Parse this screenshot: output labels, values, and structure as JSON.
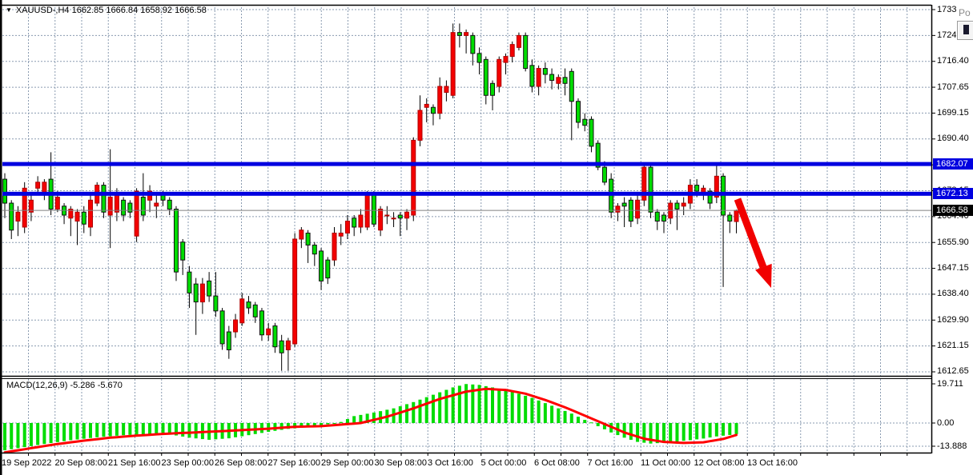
{
  "header": {
    "symbol": "XAUUSD-,H4",
    "ohlc_text": "1662.85 1666.84 1658.92 1666.58",
    "dropdown_icon": "▼"
  },
  "popup": {
    "text": "Po"
  },
  "price_axis": {
    "ticks": [
      "1733.65",
      "1724.90",
      "1716.40",
      "1707.65",
      "1699.15",
      "1690.40",
      "1681.90",
      "1673.15",
      "1664.40",
      "1655.90",
      "1647.15",
      "1638.40",
      "1629.90",
      "1621.15",
      "1612.65"
    ],
    "badges": [
      {
        "label": "1682.07",
        "price": 1682.07,
        "bg": "#0000e0"
      },
      {
        "label": "1672.13",
        "price": 1672.13,
        "bg": "#0000e0"
      },
      {
        "label": "1666.58",
        "price": 1666.58,
        "bg": "#000000"
      }
    ]
  },
  "macd_axis": {
    "labels": [
      "19.711",
      "0.00",
      "-13.888"
    ]
  },
  "time_axis": {
    "labels": [
      "19 Sep 2022",
      "20 Sep 08:00",
      "21 Sep 16:00",
      "23 Sep 00:00",
      "26 Sep 08:00",
      "27 Sep 16:00",
      "29 Sep 00:00",
      "30 Sep 08:00",
      "3 Oct 16:00",
      "5 Oct 00:00",
      "6 Oct 08:00",
      "7 Oct 16:00",
      "11 Oct 00:00",
      "12 Oct 08:00",
      "13 Oct 16:00"
    ]
  },
  "macd_pane": {
    "label": "MACD(12,26,9) -5.286 -5.670",
    "macd_value": -5.286,
    "signal_value": -5.67
  },
  "colors": {
    "bull_candle": "#f40000",
    "bull_border": "#b00000",
    "bear_candle": "#00dc00",
    "bear_border": "#111111",
    "wick": "#000000",
    "level_line": "#0000e0",
    "current_price_line": "#808080",
    "grid": "#8a9bb0",
    "macd_hist": "#00dc00",
    "macd_signal": "#ff0000",
    "arrow": "#f10000",
    "border": "#000000"
  },
  "chart_data": {
    "type": "candlestick",
    "title": "XAUUSD-,H4",
    "symbol": "XAUUSD-",
    "timeframe": "H4",
    "current_bar": {
      "open": 1662.85,
      "high": 1666.84,
      "low": 1658.92,
      "close": 1666.58
    },
    "price_range": [
      1612.65,
      1733.65
    ],
    "levels": [
      1682.07,
      1672.13
    ],
    "current_price": 1666.58,
    "annotation": {
      "type": "arrow-down-right",
      "from_price_x": "after last bar",
      "note_color": "#f10000"
    },
    "candles_ohlc": [
      [
        1677,
        1679,
        1664,
        1669
      ],
      [
        1669,
        1670,
        1657,
        1660
      ],
      [
        1663,
        1668,
        1658,
        1666
      ],
      [
        1661,
        1676,
        1659,
        1674
      ],
      [
        1666,
        1672,
        1663,
        1670
      ],
      [
        1674,
        1678,
        1672,
        1676
      ],
      [
        1672,
        1677,
        1670,
        1676
      ],
      [
        1677,
        1686,
        1665,
        1667
      ],
      [
        1667,
        1673,
        1666,
        1671
      ],
      [
        1668,
        1669,
        1662,
        1665
      ],
      [
        1664,
        1668,
        1658,
        1667
      ],
      [
        1663,
        1667,
        1655,
        1666
      ],
      [
        1666,
        1668,
        1659,
        1662
      ],
      [
        1661,
        1672,
        1658,
        1670
      ],
      [
        1669,
        1676,
        1668,
        1675
      ],
      [
        1675,
        1676,
        1664,
        1666
      ],
      [
        1665,
        1687,
        1654,
        1671
      ],
      [
        1666,
        1674,
        1663,
        1672
      ],
      [
        1670,
        1671,
        1663,
        1665
      ],
      [
        1669,
        1670,
        1664,
        1666
      ],
      [
        1658,
        1674,
        1656,
        1673
      ],
      [
        1671,
        1679,
        1663,
        1665
      ],
      [
        1670,
        1675,
        1666,
        1673
      ],
      [
        1668,
        1672,
        1664,
        1669
      ],
      [
        1672,
        1673,
        1668,
        1670
      ],
      [
        1670,
        1671,
        1665,
        1667
      ],
      [
        1667,
        1668,
        1643,
        1646
      ],
      [
        1656,
        1657,
        1645,
        1650
      ],
      [
        1646,
        1648,
        1634,
        1639
      ],
      [
        1642,
        1644,
        1625,
        1636
      ],
      [
        1636,
        1644,
        1632,
        1642
      ],
      [
        1643,
        1646,
        1636,
        1638
      ],
      [
        1638,
        1646,
        1631,
        1633
      ],
      [
        1633,
        1634,
        1620,
        1622
      ],
      [
        1626,
        1628,
        1617,
        1620
      ],
      [
        1626,
        1632,
        1624,
        1630
      ],
      [
        1629,
        1639,
        1628,
        1637
      ],
      [
        1636,
        1638,
        1632,
        1634
      ],
      [
        1635,
        1636,
        1629,
        1631
      ],
      [
        1633,
        1634,
        1623,
        1625
      ],
      [
        1625,
        1629,
        1623,
        1627
      ],
      [
        1628,
        1629,
        1619,
        1621
      ],
      [
        1623,
        1625,
        1613,
        1619
      ],
      [
        1620,
        1624,
        1613,
        1623
      ],
      [
        1622,
        1659,
        1621,
        1657
      ],
      [
        1657,
        1661,
        1654,
        1660
      ],
      [
        1659,
        1660,
        1649,
        1655
      ],
      [
        1655,
        1656,
        1648,
        1652
      ],
      [
        1653,
        1654,
        1640,
        1643
      ],
      [
        1650,
        1651,
        1642,
        1644
      ],
      [
        1650,
        1661,
        1648,
        1659
      ],
      [
        1658,
        1662,
        1655,
        1659
      ],
      [
        1659,
        1665,
        1657,
        1663
      ],
      [
        1664,
        1665,
        1658,
        1661
      ],
      [
        1661,
        1667,
        1659,
        1665
      ],
      [
        1661,
        1673,
        1660,
        1672
      ],
      [
        1672,
        1673,
        1661,
        1662
      ],
      [
        1660,
        1668,
        1658,
        1667
      ],
      [
        1665,
        1668,
        1662,
        1665
      ],
      [
        1664,
        1666,
        1661,
        1664
      ],
      [
        1665,
        1666,
        1658,
        1664
      ],
      [
        1664,
        1667,
        1660,
        1666
      ],
      [
        1665,
        1691,
        1663,
        1690
      ],
      [
        1690,
        1705,
        1688,
        1700
      ],
      [
        1701,
        1704,
        1696,
        1702
      ],
      [
        1701,
        1702,
        1695,
        1699
      ],
      [
        1699,
        1711,
        1697,
        1708
      ],
      [
        1706,
        1710,
        1703,
        1708
      ],
      [
        1705,
        1729,
        1704,
        1726
      ],
      [
        1726,
        1729,
        1721,
        1725
      ],
      [
        1725,
        1727,
        1719,
        1726
      ],
      [
        1725,
        1726,
        1715,
        1719
      ],
      [
        1719,
        1721,
        1712,
        1716
      ],
      [
        1717,
        1718,
        1702,
        1705
      ],
      [
        1709,
        1710,
        1700,
        1705
      ],
      [
        1708,
        1718,
        1706,
        1717
      ],
      [
        1716,
        1719,
        1712,
        1718
      ],
      [
        1718,
        1723,
        1716,
        1722
      ],
      [
        1721,
        1726,
        1720,
        1725
      ],
      [
        1725,
        1726,
        1713,
        1714
      ],
      [
        1715,
        1717,
        1706,
        1708
      ],
      [
        1708,
        1715,
        1705,
        1714
      ],
      [
        1714,
        1716,
        1709,
        1712
      ],
      [
        1712,
        1714,
        1707,
        1710
      ],
      [
        1709,
        1712,
        1707,
        1711
      ],
      [
        1711,
        1714,
        1705,
        1709
      ],
      [
        1713,
        1714,
        1690,
        1703
      ],
      [
        1703,
        1704,
        1694,
        1696
      ],
      [
        1697,
        1699,
        1693,
        1695
      ],
      [
        1697,
        1698,
        1686,
        1688
      ],
      [
        1689,
        1690,
        1680,
        1681
      ],
      [
        1681,
        1683,
        1675,
        1676
      ],
      [
        1677,
        1679,
        1664,
        1666
      ],
      [
        1666,
        1669,
        1663,
        1668
      ],
      [
        1669,
        1671,
        1661,
        1668
      ],
      [
        1670,
        1671,
        1661,
        1663
      ],
      [
        1664,
        1672,
        1662,
        1670
      ],
      [
        1670,
        1682,
        1668,
        1681
      ],
      [
        1681,
        1682,
        1664,
        1666
      ],
      [
        1666,
        1667,
        1660,
        1663
      ],
      [
        1665,
        1666,
        1659,
        1663
      ],
      [
        1664,
        1670,
        1662,
        1669
      ],
      [
        1669,
        1670,
        1660,
        1667
      ],
      [
        1668,
        1671,
        1665,
        1669
      ],
      [
        1669,
        1677,
        1667,
        1675
      ],
      [
        1675,
        1677,
        1671,
        1673
      ],
      [
        1672,
        1675,
        1670,
        1674
      ],
      [
        1673,
        1674,
        1667,
        1669
      ],
      [
        1671,
        1682,
        1669,
        1678
      ],
      [
        1678,
        1679,
        1641,
        1665
      ],
      [
        1665,
        1666,
        1659,
        1663
      ],
      [
        1662.85,
        1666.84,
        1658.92,
        1666.58
      ]
    ],
    "color_convention": "red body = close above open, lime body = close below open",
    "macd": {
      "type": "histogram+line",
      "params": "12,26,9",
      "axis_range": [
        -13.888,
        19.711
      ],
      "histogram_anchors": [
        [
          0,
          -13
        ],
        [
          3,
          -11.5
        ],
        [
          6,
          -10
        ],
        [
          10,
          -8.2
        ],
        [
          14,
          -6.8
        ],
        [
          18,
          -5.8
        ],
        [
          22,
          -5.2
        ],
        [
          25,
          -5.4
        ],
        [
          28,
          -7
        ],
        [
          31,
          -8
        ],
        [
          34,
          -7.3
        ],
        [
          37,
          -5.8
        ],
        [
          40,
          -4.2
        ],
        [
          43,
          -2.8
        ],
        [
          46,
          -2
        ],
        [
          49,
          -0.6
        ],
        [
          51,
          0.5
        ],
        [
          53,
          3.3
        ],
        [
          56,
          5
        ],
        [
          59,
          7
        ],
        [
          62,
          10
        ],
        [
          65,
          13.5
        ],
        [
          68,
          17
        ],
        [
          70,
          18.6
        ],
        [
          72,
          18.2
        ],
        [
          74,
          17
        ],
        [
          76,
          15.8
        ],
        [
          78,
          14
        ],
        [
          80,
          12
        ],
        [
          82,
          9.5
        ],
        [
          84,
          7
        ],
        [
          86,
          4.5
        ],
        [
          88,
          1.5
        ],
        [
          89,
          0.3
        ],
        [
          90,
          -1.5
        ],
        [
          92,
          -4.5
        ],
        [
          94,
          -7
        ],
        [
          96,
          -9
        ],
        [
          98,
          -9.8
        ],
        [
          100,
          -9.4
        ],
        [
          102,
          -8.8
        ],
        [
          104,
          -8.2
        ],
        [
          106,
          -7.4
        ],
        [
          108,
          -6.4
        ],
        [
          110,
          -5.7
        ],
        [
          111,
          -5.286
        ]
      ],
      "signal_anchors": [
        [
          0,
          -14
        ],
        [
          4,
          -12
        ],
        [
          8,
          -10
        ],
        [
          12,
          -8.4
        ],
        [
          16,
          -7
        ],
        [
          20,
          -6
        ],
        [
          24,
          -5.2
        ],
        [
          28,
          -4.6
        ],
        [
          32,
          -4
        ],
        [
          36,
          -3.4
        ],
        [
          40,
          -2.7
        ],
        [
          44,
          -1.8
        ],
        [
          48,
          -1.5
        ],
        [
          54,
          0
        ],
        [
          58,
          3
        ],
        [
          62,
          7
        ],
        [
          66,
          11.5
        ],
        [
          70,
          15
        ],
        [
          73,
          16.3
        ],
        [
          76,
          15.8
        ],
        [
          79,
          14
        ],
        [
          82,
          11
        ],
        [
          85,
          7.5
        ],
        [
          88,
          3.5
        ],
        [
          91,
          -0.5
        ],
        [
          94,
          -4.5
        ],
        [
          97,
          -7.5
        ],
        [
          100,
          -9
        ],
        [
          103,
          -9.5
        ],
        [
          106,
          -9.2
        ],
        [
          109,
          -7.6
        ],
        [
          111,
          -5.67
        ]
      ]
    }
  }
}
